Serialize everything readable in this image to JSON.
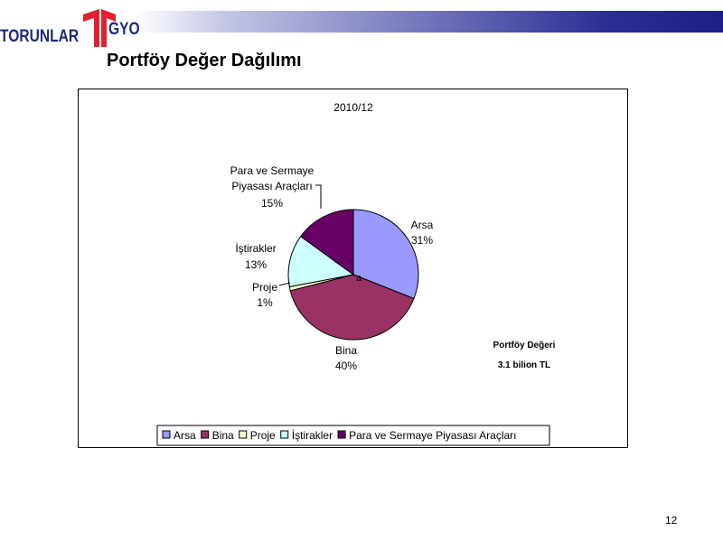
{
  "header": {
    "brand_left": "TORUNLAR",
    "brand_right": "GYO",
    "brand_color": "#1f2a7a",
    "logo_accent_color": "#e2202e"
  },
  "page_title": "Portföy Değer Dağılımı",
  "page_number": "12",
  "chart_data": {
    "type": "pie",
    "title": "2010/12",
    "categories": [
      "Arsa",
      "Bina",
      "Proje",
      "İştirakler",
      "Para ve Sermaye Piyasası Araçları"
    ],
    "values": [
      31,
      40,
      1,
      13,
      15
    ],
    "value_labels": [
      "31%",
      "40%",
      "1%",
      "13%",
      "15%"
    ],
    "slice_labels": [
      "Arsa",
      "Bina",
      "Proje",
      "İştirakler",
      "Para ve Sermaye Piyasası Araçları"
    ],
    "colors": [
      "#9999ff",
      "#993366",
      "#ffffcc",
      "#ccffff",
      "#660066"
    ],
    "legend_position": "bottom",
    "center_marker": "a",
    "annotation": {
      "line1": "Portföy Değeri",
      "line2": "3.1 bilion TL"
    }
  }
}
